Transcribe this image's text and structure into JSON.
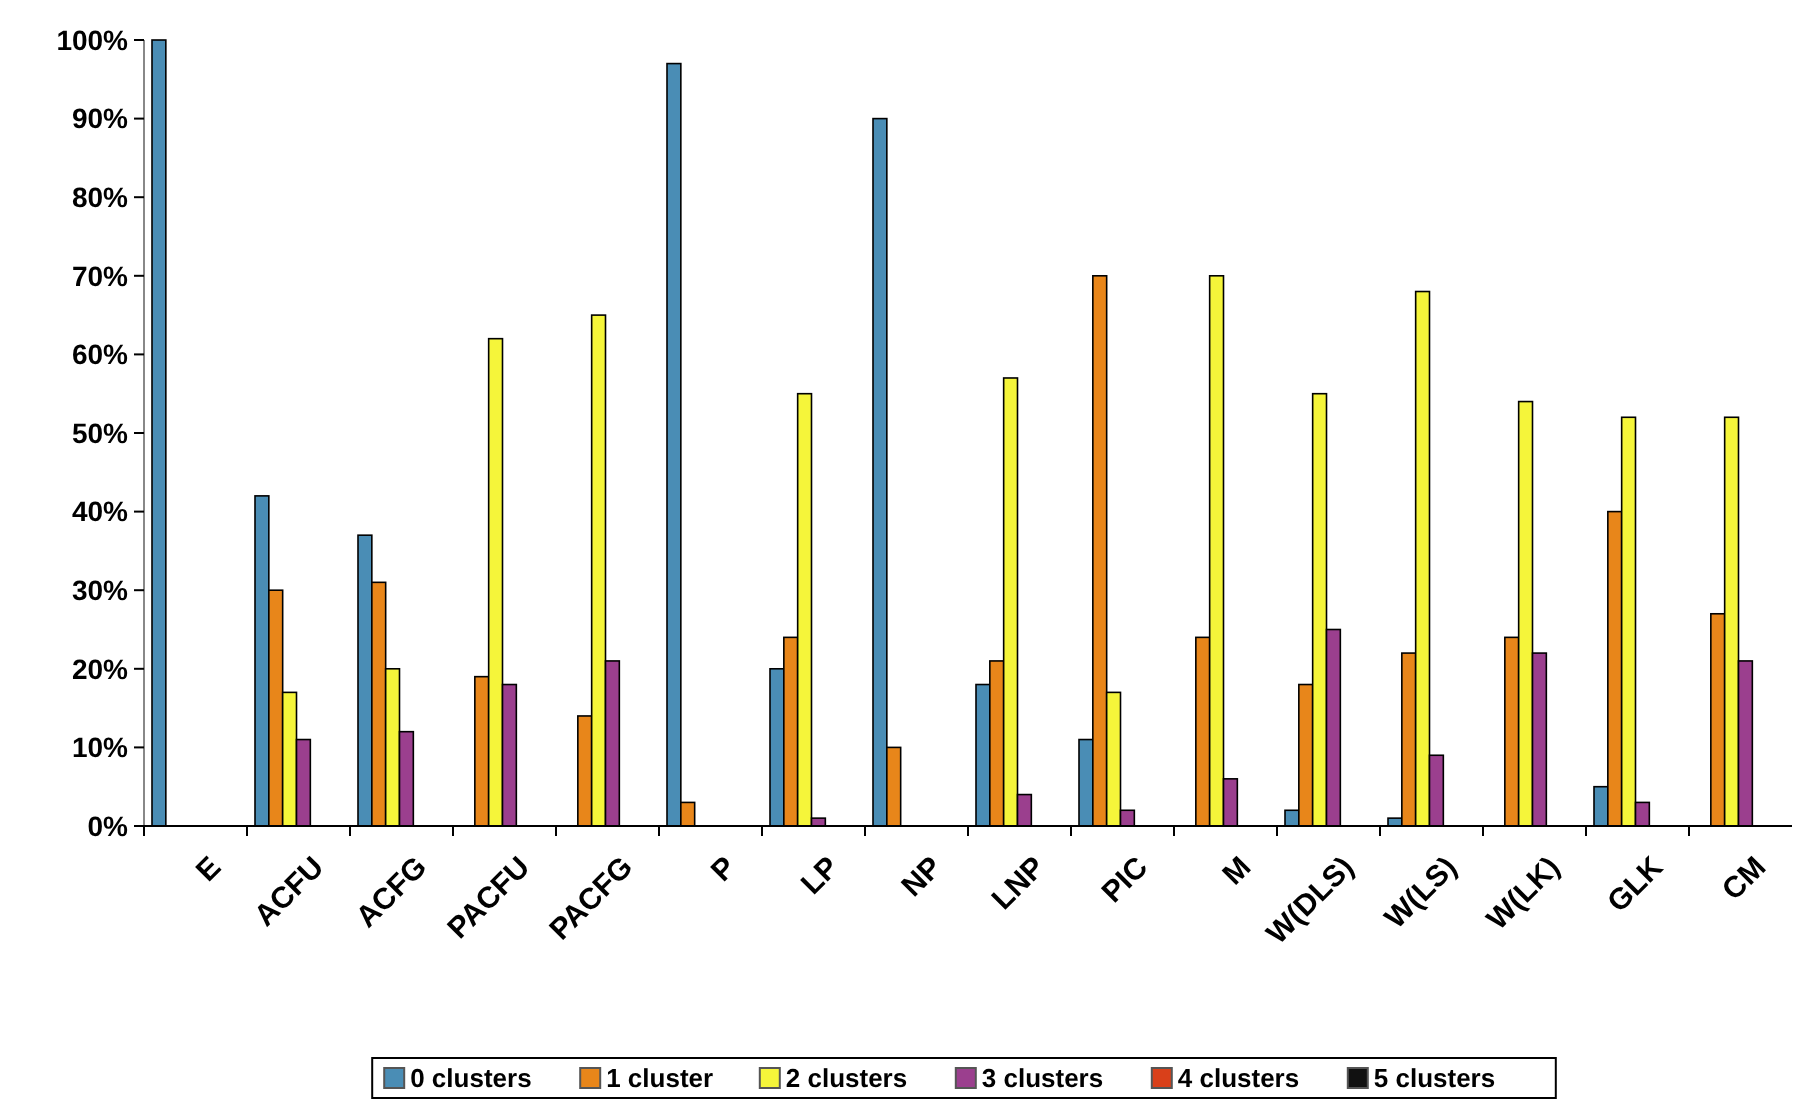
{
  "chart_data": {
    "type": "bar",
    "categories": [
      "E",
      "ACFU",
      "ACFG",
      "PACFU",
      "PACFG",
      "P",
      "LP",
      "NP",
      "LNP",
      "PIC",
      "M",
      "W(DLS)",
      "W(LS)",
      "W(LK)",
      "GLK",
      "CM"
    ],
    "series": [
      {
        "name": "0 clusters",
        "color": "#4a8db5",
        "values": [
          100,
          42,
          37,
          0,
          0,
          97,
          20,
          90,
          18,
          11,
          0,
          2,
          1,
          0,
          5,
          0
        ]
      },
      {
        "name": "1 cluster",
        "color": "#e8861a",
        "values": [
          0,
          30,
          31,
          19,
          14,
          3,
          24,
          10,
          21,
          70,
          24,
          18,
          22,
          24,
          40,
          27
        ]
      },
      {
        "name": "2 clusters",
        "color": "#f5f53a",
        "values": [
          0,
          17,
          20,
          62,
          65,
          0,
          55,
          0,
          57,
          17,
          70,
          55,
          68,
          54,
          52,
          52
        ]
      },
      {
        "name": "3 clusters",
        "color": "#9b3f8e",
        "values": [
          0,
          11,
          12,
          18,
          21,
          0,
          1,
          0,
          4,
          2,
          6,
          25,
          9,
          22,
          3,
          21
        ]
      },
      {
        "name": "4 clusters",
        "color": "#d9401a",
        "values": [
          0,
          0,
          0,
          0,
          0,
          0,
          0,
          0,
          0,
          0,
          0,
          0,
          0,
          0,
          0,
          0
        ]
      },
      {
        "name": "5 clusters",
        "color": "#111111",
        "values": [
          0,
          0,
          0,
          0,
          0,
          0,
          0,
          0,
          0,
          0,
          0,
          0,
          0,
          0,
          0,
          0
        ]
      }
    ],
    "ylim": [
      0,
      100
    ],
    "yticks": [
      {
        "value": 0,
        "label": "0%"
      },
      {
        "value": 10,
        "label": "10%"
      },
      {
        "value": 20,
        "label": "20%"
      },
      {
        "value": 30,
        "label": "30%"
      },
      {
        "value": 40,
        "label": "40%"
      },
      {
        "value": 50,
        "label": "50%"
      },
      {
        "value": 60,
        "label": "60%"
      },
      {
        "value": 70,
        "label": "70%"
      },
      {
        "value": 80,
        "label": "80%"
      },
      {
        "value": 90,
        "label": "90%"
      },
      {
        "value": 100,
        "label": "100%"
      }
    ],
    "grid": false,
    "legend": "bottom"
  }
}
